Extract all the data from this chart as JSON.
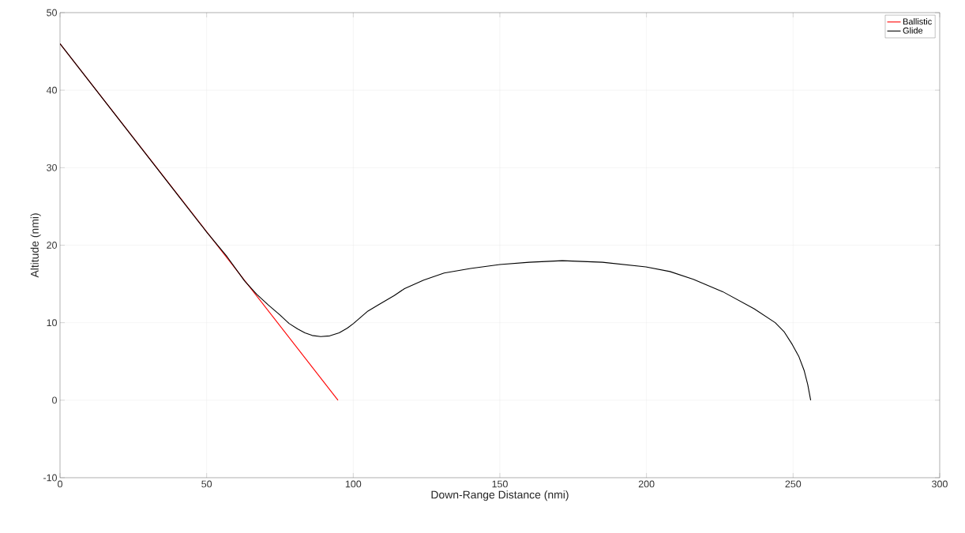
{
  "chart_data": {
    "type": "line",
    "xlabel": "Down-Range Distance (nmi)",
    "ylabel": "Altitude (nmi)",
    "xlim": [
      0,
      300
    ],
    "ylim": [
      -10,
      50
    ],
    "xticks": [
      0,
      50,
      100,
      150,
      200,
      250,
      300
    ],
    "yticks": [
      -10,
      0,
      10,
      20,
      30,
      40,
      50
    ],
    "grid": true,
    "legend": "top right",
    "marker": "none",
    "line_style": "solid",
    "series": [
      {
        "name": "Ballistic",
        "color": "#ff0000",
        "x": [
          0,
          94.8
        ],
        "values": [
          46,
          0
        ]
      },
      {
        "name": "Glide",
        "color": "#000000",
        "x": [
          0,
          40.5,
          50,
          57,
          62.9,
          67,
          71,
          75,
          78.1,
          81,
          83.5,
          86,
          88.9,
          92,
          95.2,
          98,
          100.1,
          105,
          108.6,
          114,
          117.5,
          124,
          131,
          140,
          150,
          160,
          171.3,
          185,
          199.8,
          208,
          216,
          226,
          236.7,
          243.9,
          247,
          249.7,
          252,
          253.8,
          255,
          256
        ],
        "values": [
          46,
          26.3,
          21.7,
          18.5,
          15.4,
          13.7,
          12.3,
          11,
          9.9,
          9.2,
          8.7,
          8.35,
          8.2,
          8.3,
          8.7,
          9.3,
          9.9,
          11.5,
          12.3,
          13.5,
          14.4,
          15.5,
          16.4,
          17.0,
          17.5,
          17.8,
          18.0,
          17.8,
          17.2,
          16.6,
          15.6,
          14.0,
          11.8,
          10.0,
          8.8,
          7.2,
          5.6,
          3.8,
          2.0,
          0
        ]
      }
    ]
  }
}
